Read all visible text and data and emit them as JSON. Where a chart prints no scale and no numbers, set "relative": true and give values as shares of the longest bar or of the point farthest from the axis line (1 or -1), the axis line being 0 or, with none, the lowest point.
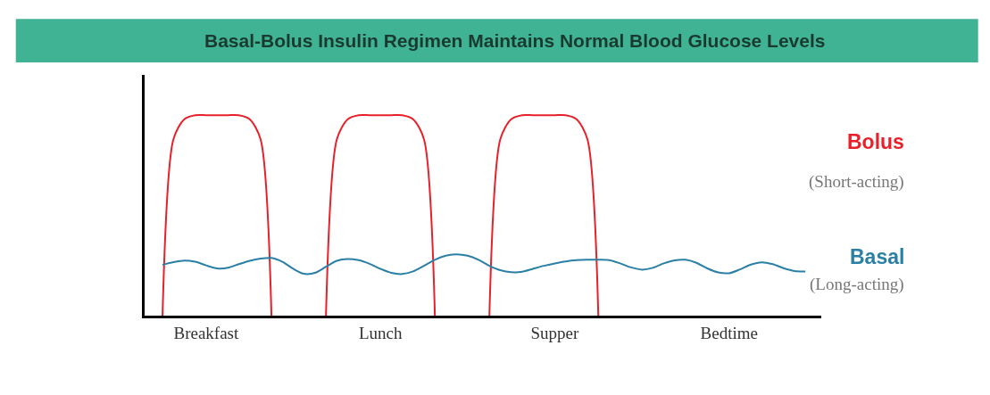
{
  "chart_data": {
    "type": "line",
    "title": "Basal-Bolus Insulin Regimen Maintains Normal Blood Glucose Levels",
    "relative": true,
    "categories": [
      null,
      null,
      null,
      null,
      null,
      "Breakfast",
      null,
      null,
      null,
      null,
      null,
      null,
      null,
      null,
      null,
      null,
      null,
      null,
      null,
      null,
      null,
      "Lunch",
      null,
      null,
      null,
      null,
      null,
      null,
      null,
      null,
      null,
      null,
      null,
      null,
      null,
      null,
      null,
      "Supper",
      null,
      null,
      null,
      null,
      null,
      null,
      null,
      null,
      null,
      null,
      null,
      null,
      null,
      null,
      null,
      "Bedtime",
      null,
      null,
      null,
      null,
      null,
      null,
      null
    ],
    "legend": false,
    "marker": "none",
    "line_style": "solid",
    "annotations": [
      "(Short-acting)",
      "(Long-acting)"
    ],
    "series": [
      {
        "name": "Bolus",
        "color": "#e8202a",
        "values": [
          null,
          0,
          0.88,
          0.98,
          1,
          1,
          1,
          1,
          1,
          0.98,
          0.88,
          0,
          null,
          null,
          null,
          null,
          0,
          0.88,
          0.98,
          1,
          1,
          1,
          1,
          1,
          0.98,
          0.88,
          0,
          null,
          null,
          null,
          null,
          0,
          0.88,
          0.98,
          1,
          1,
          1,
          1,
          1,
          0.98,
          0.88,
          0,
          null,
          null,
          null,
          null,
          null,
          null,
          null,
          null,
          null,
          null,
          null,
          null,
          null,
          null,
          null,
          null,
          null,
          null,
          null
        ]
      },
      {
        "name": "Basal",
        "color": "#2a7fa5",
        "values": [
          null,
          0.255,
          0.268,
          0.276,
          0.27,
          0.252,
          0.237,
          0.24,
          0.258,
          0.275,
          0.286,
          0.289,
          0.27,
          0.235,
          0.21,
          0.215,
          0.245,
          0.275,
          0.284,
          0.278,
          0.26,
          0.235,
          0.215,
          0.209,
          0.222,
          0.25,
          0.28,
          0.3,
          0.307,
          0.3,
          0.28,
          0.25,
          0.228,
          0.218,
          0.22,
          0.235,
          0.25,
          0.262,
          0.272,
          0.278,
          0.28,
          0.28,
          0.278,
          0.262,
          0.242,
          0.231,
          0.24,
          0.262,
          0.277,
          0.28,
          0.265,
          0.237,
          0.217,
          0.213,
          0.232,
          0.256,
          0.267,
          0.258,
          0.238,
          0.224,
          0.222
        ]
      }
    ]
  }
}
